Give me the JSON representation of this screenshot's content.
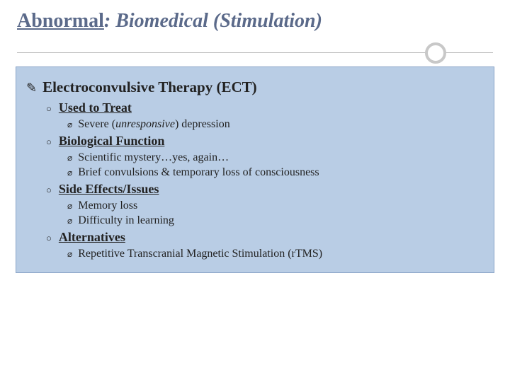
{
  "title": {
    "underlined_part": "Abnormal",
    "rest": ": Biomedical (Stimulation)"
  },
  "colors": {
    "title_color": "#5b6a8a",
    "content_bg": "#b9cde5",
    "content_border": "#8aa4c8",
    "divider_line": "#b8b8b8",
    "divider_circle": "#c8c8c8"
  },
  "heading": "Electroconvulsive Therapy (ECT)",
  "sections": [
    {
      "label": "Used to Treat",
      "items": [
        {
          "pre": "Severe (",
          "italic": "unresponsive",
          "post": ") depression"
        }
      ]
    },
    {
      "label": "Biological Function",
      "items": [
        {
          "text": "Scientific mystery…yes, again…"
        },
        {
          "text": "Brief convulsions & temporary loss of consciousness"
        }
      ]
    },
    {
      "label": "Side Effects/Issues",
      "items": [
        {
          "text": "Memory loss"
        },
        {
          "text": "Difficulty in learning"
        }
      ]
    },
    {
      "label": "Alternatives",
      "items": [
        {
          "text": "Repetitive Transcranial Magnetic Stimulation (rTMS)"
        }
      ]
    }
  ]
}
